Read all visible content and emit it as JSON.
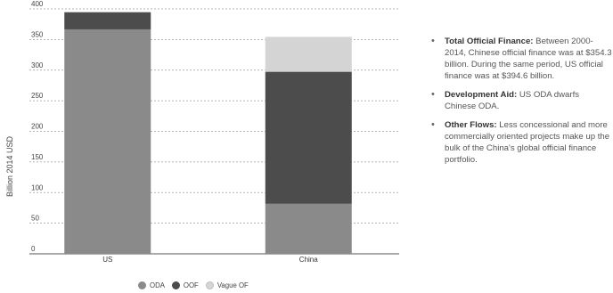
{
  "chart_data": {
    "type": "bar",
    "stacked": true,
    "categories": [
      "US",
      "China"
    ],
    "series": [
      {
        "name": "ODA",
        "values": [
          366.6,
          81.7
        ],
        "color": "#8a8a8a"
      },
      {
        "name": "OOF",
        "values": [
          28.0,
          215.6
        ],
        "color": "#4c4c4c"
      },
      {
        "name": "Vague OF",
        "values": [
          0,
          57.0
        ],
        "color": "#d4d4d4"
      }
    ],
    "ylabel": "Billion 2014 USD",
    "ylim": [
      0,
      400
    ],
    "yticks": [
      0,
      50,
      100,
      150,
      200,
      250,
      300,
      350,
      400
    ],
    "grid": true,
    "legend_position": "bottom"
  },
  "notes": [
    {
      "title": "Total Official Finance:",
      "text": " Between 2000-2014, Chinese official finance was at $354.3 billion. During the same period, US official finance was at $394.6 billion."
    },
    {
      "title": "Development Aid:",
      "text": " US ODA dwarfs Chinese ODA."
    },
    {
      "title": "Other Flows:",
      "text": " Less concessional and more commercially oriented projects make up the bulk of the China's global official finance portfolio."
    }
  ],
  "legend": [
    {
      "label": "ODA",
      "icon": "oda-swatch"
    },
    {
      "label": "OOF",
      "icon": "oof-swatch"
    },
    {
      "label": "Vague OF",
      "icon": "vague-of-swatch"
    }
  ]
}
